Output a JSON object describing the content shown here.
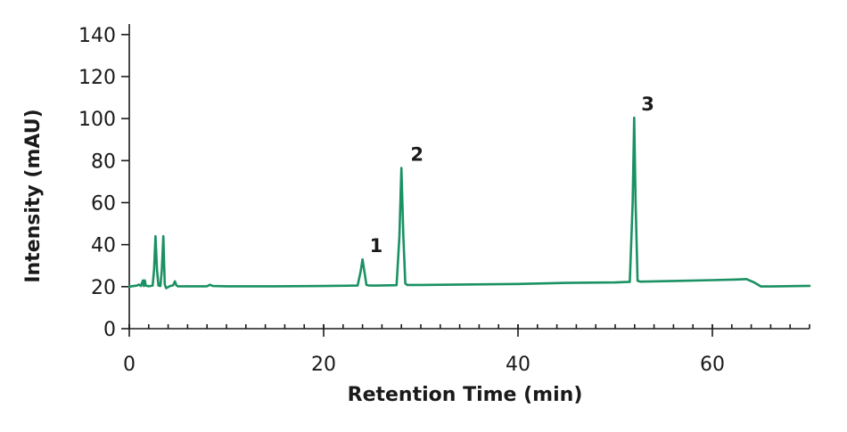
{
  "chart_data": {
    "type": "line",
    "xlabel": "Retention Time (min)",
    "ylabel": "Intensity (mAU)",
    "xlim": [
      0,
      70
    ],
    "ylim": [
      0,
      145
    ],
    "x_ticks": [
      0,
      20,
      40,
      60
    ],
    "y_ticks": [
      0,
      20,
      40,
      60,
      80,
      100,
      120,
      140
    ],
    "x_minor_step": 2,
    "grid": false,
    "line_color": "#1a9163",
    "series": [
      {
        "x": [
          0,
          0.8,
          1.0,
          1.2,
          1.4,
          1.5,
          1.6,
          1.7,
          2.0,
          2.4,
          2.55,
          2.7,
          2.85,
          3.0,
          3.2,
          3.35,
          3.5,
          3.65,
          3.8,
          4.2,
          4.5,
          4.7,
          4.85,
          5.0,
          5.5,
          8.0,
          8.3,
          8.6,
          10,
          15,
          20,
          23.5,
          23.8,
          24.0,
          24.2,
          24.4,
          24.7,
          25.5,
          27.5,
          27.8,
          28.0,
          28.2,
          28.4,
          28.6,
          28.9,
          30,
          40,
          45,
          50,
          51.5,
          51.8,
          51.95,
          52.1,
          52.3,
          52.6,
          55,
          60,
          62.5,
          63.5,
          64.3,
          65.0,
          66,
          70
        ],
        "y": [
          20,
          20.5,
          21,
          20.3,
          23,
          20.3,
          23,
          20.5,
          20.2,
          20.5,
          28,
          44,
          28,
          20.5,
          20.3,
          28,
          44,
          21,
          19.3,
          20.3,
          20.6,
          22.5,
          20.6,
          20.2,
          20.2,
          20.2,
          20.9,
          20.3,
          20.2,
          20.2,
          20.3,
          20.5,
          27,
          33,
          27,
          20.8,
          20.5,
          20.5,
          20.7,
          44,
          76.5,
          44,
          21.5,
          20.8,
          20.8,
          20.8,
          21.3,
          21.8,
          22,
          22.3,
          60,
          100.5,
          60,
          22.8,
          22.4,
          22.6,
          23.1,
          23.4,
          23.6,
          22,
          20.1,
          20.1,
          20.4
        ]
      }
    ],
    "annotations": [
      {
        "text": "1",
        "x": 24.0,
        "y": 33
      },
      {
        "text": "2",
        "x": 28.2,
        "y": 76.5
      },
      {
        "text": "3",
        "x": 51.95,
        "y": 100.5
      }
    ]
  }
}
